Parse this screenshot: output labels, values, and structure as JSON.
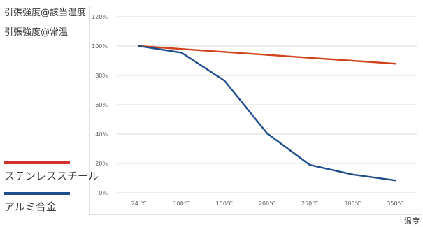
{
  "chart_data": {
    "type": "line",
    "ylabel_numerator": "引張強度@該当温度",
    "ylabel_denominator": "引張強度@常温",
    "xlabel": "温度",
    "categories": [
      "24 ℃",
      "100℃",
      "150℃",
      "200℃",
      "250℃",
      "300℃",
      "350℃"
    ],
    "y_ticks": [
      "0%",
      "20%",
      "40%",
      "60%",
      "80%",
      "100%",
      "120%"
    ],
    "ylim": [
      0,
      120
    ],
    "grid": true,
    "legend_position": "left",
    "series": [
      {
        "name": "ステンレススチール",
        "color": "#d0431c",
        "values": [
          100,
          98,
          96,
          94,
          92,
          90,
          88
        ]
      },
      {
        "name": "アルミ合金",
        "color": "#1f4e8c",
        "values": [
          100,
          95.5,
          76.5,
          40.5,
          19,
          12.5,
          8.5
        ]
      }
    ]
  }
}
